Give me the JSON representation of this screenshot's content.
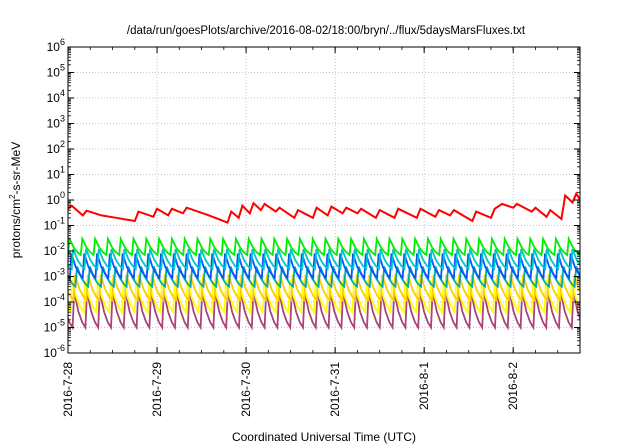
{
  "chart_data": {
    "type": "line",
    "title": "/data/run/goesPlots/archive/2016-08-02/18:00/bryn/../flux/5daysMarsFluxes.txt",
    "xlabel": "Coordinated Universal Time (UTC)",
    "ylabel": {
      "pre": "protons/cm",
      "sup": "2",
      "post": "-s-sr-MeV"
    },
    "y_scale": "log",
    "ylim": [
      1e-06,
      1000000.0
    ],
    "y_ticks": [
      {
        "v": 1e-06,
        "base": "10",
        "exp": "-6"
      },
      {
        "v": 1e-05,
        "base": "10",
        "exp": "-5"
      },
      {
        "v": 0.0001,
        "base": "10",
        "exp": "-4"
      },
      {
        "v": 0.001,
        "base": "10",
        "exp": "-3"
      },
      {
        "v": 0.01,
        "base": "10",
        "exp": "-2"
      },
      {
        "v": 0.1,
        "base": "10",
        "exp": "-1"
      },
      {
        "v": 1,
        "base": "10",
        "exp": "0"
      },
      {
        "v": 10,
        "base": "10",
        "exp": "1"
      },
      {
        "v": 100,
        "base": "10",
        "exp": "2"
      },
      {
        "v": 1000,
        "base": "10",
        "exp": "3"
      },
      {
        "v": 10000,
        "base": "10",
        "exp": "4"
      },
      {
        "v": 100000,
        "base": "10",
        "exp": "5"
      },
      {
        "v": 1000000,
        "base": "10",
        "exp": "6"
      }
    ],
    "xlim": [
      "2016-07-28 00:00",
      "2016-08-02 18:00"
    ],
    "x_ticks": [
      "2016-7-28",
      "2016-7-29",
      "2016-7-30",
      "2016-7-31",
      "2016-8-1",
      "2016-8-2"
    ],
    "grid": true,
    "series": [
      {
        "color": "#ff0000",
        "values": [
          [
            "2016-07-28 00:00",
            0.45
          ],
          [
            "2016-07-28 01:00",
            0.6
          ],
          [
            "2016-07-28 04:00",
            0.25
          ],
          [
            "2016-07-28 05:00",
            0.38
          ],
          [
            "2016-07-28 09:00",
            0.25
          ],
          [
            "2016-07-28 13:00",
            0.2
          ],
          [
            "2016-07-28 18:00",
            0.15
          ],
          [
            "2016-07-28 19:00",
            0.35
          ],
          [
            "2016-07-28 23:00",
            0.22
          ],
          [
            "2016-07-29 00:00",
            0.45
          ],
          [
            "2016-07-29 03:00",
            0.25
          ],
          [
            "2016-07-29 04:00",
            0.45
          ],
          [
            "2016-07-29 07:00",
            0.3
          ],
          [
            "2016-07-29 08:00",
            0.5
          ],
          [
            "2016-07-29 14:00",
            0.25
          ],
          [
            "2016-07-29 19:00",
            0.13
          ],
          [
            "2016-07-29 20:00",
            0.35
          ],
          [
            "2016-07-29 22:00",
            0.2
          ],
          [
            "2016-07-29 23:00",
            0.6
          ],
          [
            "2016-07-30 01:00",
            0.3
          ],
          [
            "2016-07-30 02:00",
            0.75
          ],
          [
            "2016-07-30 04:00",
            0.4
          ],
          [
            "2016-07-30 05:00",
            0.7
          ],
          [
            "2016-07-30 08:00",
            0.35
          ],
          [
            "2016-07-30 09:00",
            0.5
          ],
          [
            "2016-07-30 13:00",
            0.2
          ],
          [
            "2016-07-30 14:00",
            0.4
          ],
          [
            "2016-07-30 18:00",
            0.2
          ],
          [
            "2016-07-30 19:00",
            0.5
          ],
          [
            "2016-07-30 22:00",
            0.25
          ],
          [
            "2016-07-30 23:00",
            0.55
          ],
          [
            "2016-07-31 02:00",
            0.3
          ],
          [
            "2016-07-31 03:00",
            0.5
          ],
          [
            "2016-07-31 06:00",
            0.3
          ],
          [
            "2016-07-31 07:00",
            0.45
          ],
          [
            "2016-07-31 11:00",
            0.2
          ],
          [
            "2016-07-31 12:00",
            0.4
          ],
          [
            "2016-07-31 16:00",
            0.2
          ],
          [
            "2016-07-31 17:00",
            0.45
          ],
          [
            "2016-07-31 22:00",
            0.2
          ],
          [
            "2016-07-31 23:00",
            0.45
          ],
          [
            "2016-08-01 03:00",
            0.22
          ],
          [
            "2016-08-01 04:00",
            0.4
          ],
          [
            "2016-08-01 07:00",
            0.25
          ],
          [
            "2016-08-01 08:00",
            0.4
          ],
          [
            "2016-08-01 13:00",
            0.15
          ],
          [
            "2016-08-01 14:00",
            0.35
          ],
          [
            "2016-08-01 18:00",
            0.2
          ],
          [
            "2016-08-01 19:00",
            0.45
          ],
          [
            "2016-08-01 21:00",
            0.7
          ],
          [
            "2016-08-02 00:00",
            0.5
          ],
          [
            "2016-08-02 01:00",
            0.7
          ],
          [
            "2016-08-02 05:00",
            0.35
          ],
          [
            "2016-08-02 06:00",
            0.5
          ],
          [
            "2016-08-02 09:00",
            0.22
          ],
          [
            "2016-08-02 10:00",
            0.4
          ],
          [
            "2016-08-02 13:00",
            0.18
          ],
          [
            "2016-08-02 14:00",
            1.5
          ],
          [
            "2016-08-02 16:00",
            0.8
          ],
          [
            "2016-08-02 17:00",
            1.8
          ],
          [
            "2016-08-02 18:00",
            1.0
          ]
        ]
      },
      {
        "color": "#00ee00",
        "cycle": {
          "start": "2016-07-28 00:00",
          "period_hours": 3.45,
          "peak": 0.03,
          "trough": 0.007
        }
      },
      {
        "color": "#00c8c8",
        "cycle": {
          "start": "2016-07-28 01:00",
          "period_hours": 3.45,
          "peak": 0.012,
          "trough": 0.002
        }
      },
      {
        "color": "#0055ff",
        "cycle": {
          "start": "2016-07-28 00:30",
          "period_hours": 3.45,
          "peak": 0.008,
          "trough": 0.0009
        }
      },
      {
        "color": "#00aaaa",
        "cycle": {
          "start": "2016-07-28 02:00",
          "period_hours": 3.45,
          "peak": 0.0025,
          "trough": 0.0004
        }
      },
      {
        "color": "#ffcc00",
        "cycle": {
          "start": "2016-07-28 01:30",
          "period_hours": 3.45,
          "peak": 0.0012,
          "trough": 0.00012
        }
      },
      {
        "color": "#ffff00",
        "cycle": {
          "start": "2016-07-28 00:45",
          "period_hours": 3.45,
          "peak": 0.0007,
          "trough": 4e-05
        }
      },
      {
        "color": "#aa4477",
        "cycle": {
          "start": "2016-07-28 01:15",
          "period_hours": 3.45,
          "peak": 0.00025,
          "trough": 1e-05
        }
      }
    ]
  }
}
